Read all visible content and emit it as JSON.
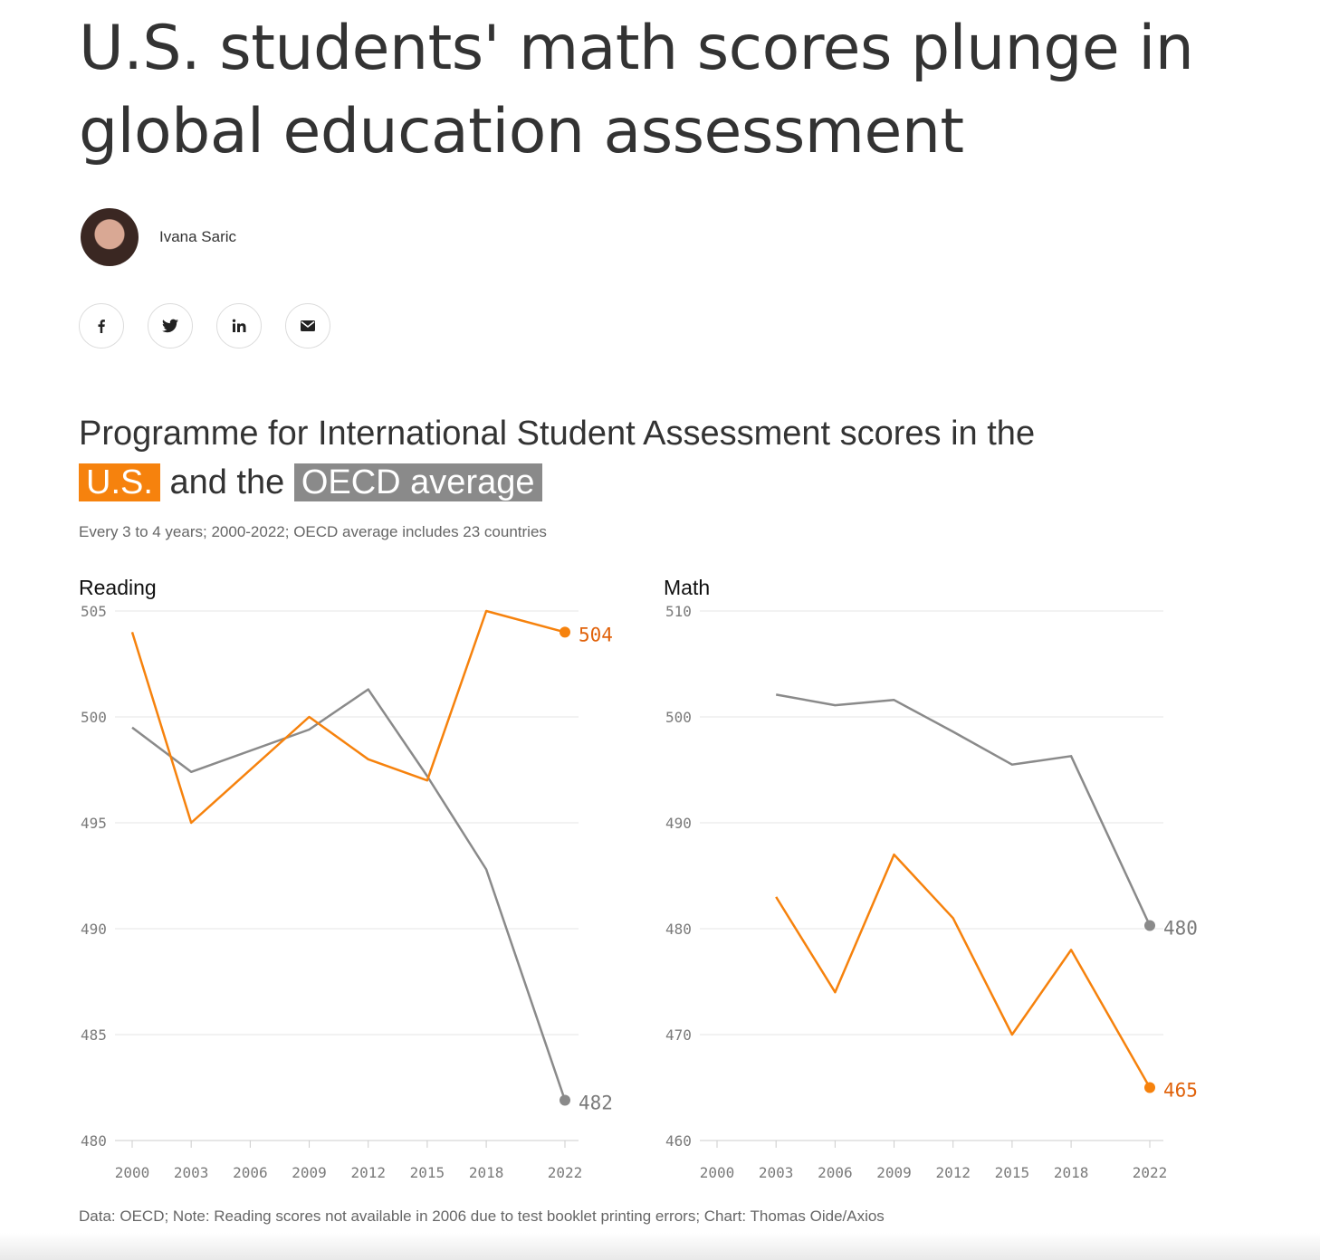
{
  "article": {
    "headline": "U.S. students' math scores plunge in global education assessment",
    "author": "Ivana Saric"
  },
  "share": [
    {
      "name": "facebook",
      "icon": "facebook-icon"
    },
    {
      "name": "twitter",
      "icon": "twitter-icon"
    },
    {
      "name": "linkedin",
      "icon": "linkedin-icon"
    },
    {
      "name": "email",
      "icon": "email-icon"
    }
  ],
  "chart_header": {
    "title_prefix": "Programme for International Student Assessment scores in the",
    "us_label": "U.S.",
    "title_middle": "and the",
    "oecd_label": "OECD average",
    "subtitle": "Every 3 to 4 years; 2000-2022; OECD average includes 23 countries",
    "footnote": "Data: OECD; Note: Reading scores not available in 2006 due to test booklet printing errors; Chart: Thomas Oide/Axios"
  },
  "colors": {
    "us": "#f6820d",
    "oecd": "#8a8a8a",
    "us_label": "#e0620b"
  },
  "chart_data": [
    {
      "type": "line",
      "title": "Reading",
      "x_ticks": [
        2000,
        2003,
        2006,
        2009,
        2012,
        2015,
        2018,
        2022
      ],
      "y_ticks": [
        480,
        485,
        490,
        495,
        500,
        505
      ],
      "ylim": [
        480,
        505
      ],
      "grid": true,
      "series": [
        {
          "name": "U.S.",
          "x": [
            2000,
            2003,
            2009,
            2012,
            2015,
            2018,
            2022
          ],
          "values": [
            504,
            495,
            500,
            498,
            497,
            505,
            504
          ],
          "end_label": "504"
        },
        {
          "name": "OECD average",
          "x": [
            2000,
            2003,
            2009,
            2012,
            2015,
            2018,
            2022
          ],
          "values": [
            499.5,
            497.4,
            499.4,
            501.3,
            497.2,
            492.8,
            481.9
          ],
          "end_label": "482"
        }
      ]
    },
    {
      "type": "line",
      "title": "Math",
      "x_ticks": [
        2000,
        2003,
        2006,
        2009,
        2012,
        2015,
        2018,
        2022
      ],
      "y_ticks": [
        460,
        470,
        480,
        490,
        500,
        510
      ],
      "ylim": [
        460,
        510
      ],
      "grid": true,
      "series": [
        {
          "name": "U.S.",
          "x": [
            2003,
            2006,
            2009,
            2012,
            2015,
            2018,
            2022
          ],
          "values": [
            483,
            474,
            487,
            481,
            470,
            478,
            465
          ],
          "end_label": "465"
        },
        {
          "name": "OECD average",
          "x": [
            2003,
            2006,
            2009,
            2012,
            2015,
            2018,
            2022
          ],
          "values": [
            502.1,
            501.1,
            501.6,
            498.6,
            495.5,
            496.3,
            480.3
          ],
          "end_label": "480"
        }
      ]
    }
  ]
}
